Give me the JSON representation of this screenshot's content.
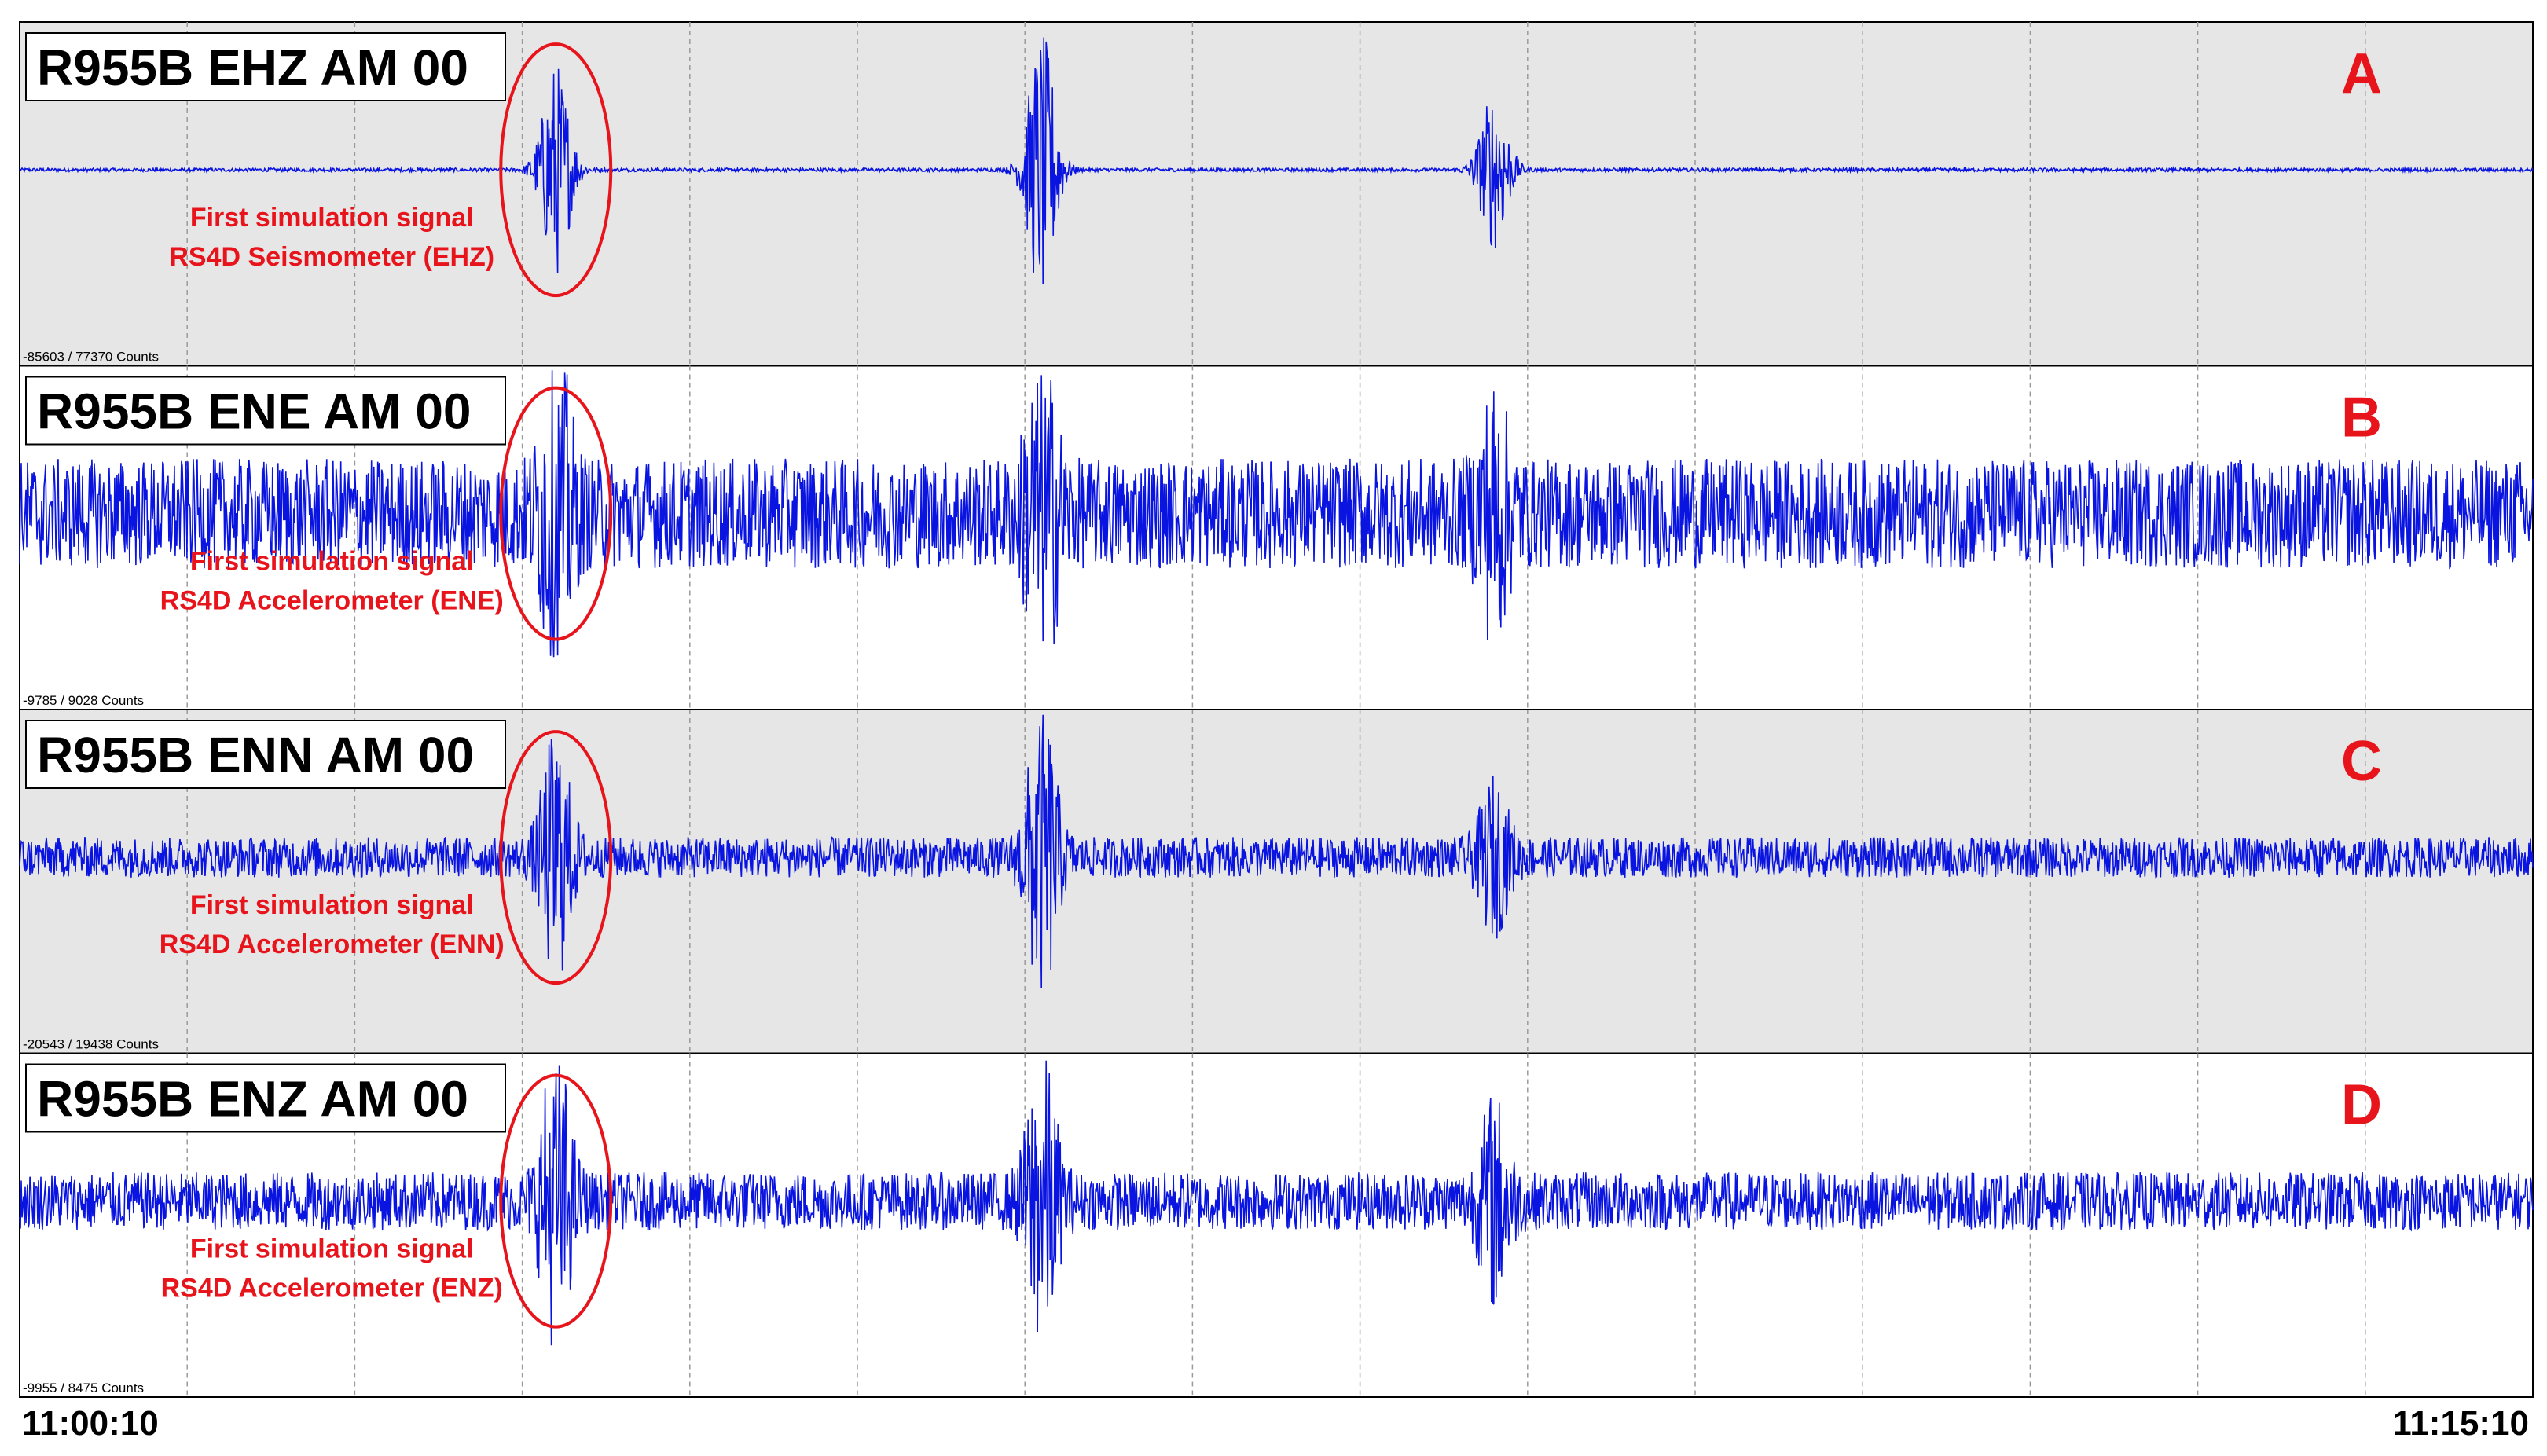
{
  "chart_data": {
    "type": "line",
    "title": "",
    "xlabel": "",
    "ylabel": "",
    "time_axis": {
      "start": "11:00:10",
      "end": "11:15:10"
    },
    "grid": true,
    "trace_color": "#0a14e0",
    "annotation_color": "#e8141b",
    "panels": [
      {
        "letter": "A",
        "station": "R955B EHZ AM 00",
        "range_text": "-85603 / 77370 Counts",
        "ylim": [
          -85603,
          77370
        ],
        "background": "#e6e6e6",
        "noise_level": 0.012,
        "envelope": [
          {
            "t_min": 3.2,
            "amplitude": 0.75
          },
          {
            "t_min": 6.1,
            "amplitude": 0.95
          },
          {
            "t_min": 8.8,
            "amplitude": 0.55
          }
        ],
        "annotation": {
          "line1": "First simulation signal",
          "line2": "RS4D Seismometer (EHZ)"
        }
      },
      {
        "letter": "B",
        "station": "R955B ENE AM 00",
        "range_text": "-9785 / 9028 Counts",
        "ylim": [
          -9785,
          9028
        ],
        "background": "#ffffff",
        "noise_level": 0.38,
        "envelope": [
          {
            "t_min": 3.2,
            "amplitude": 0.95
          },
          {
            "t_min": 6.1,
            "amplitude": 1.0
          },
          {
            "t_min": 8.8,
            "amplitude": 0.6
          }
        ],
        "annotation": {
          "line1": "First simulation signal",
          "line2": "RS4D Accelerometer (ENE)"
        }
      },
      {
        "letter": "C",
        "station": "R955B ENN AM 00",
        "range_text": "-20543 / 19438 Counts",
        "ylim": [
          -20543,
          19438
        ],
        "background": "#e6e6e6",
        "noise_level": 0.14,
        "envelope": [
          {
            "t_min": 3.2,
            "amplitude": 0.8
          },
          {
            "t_min": 6.1,
            "amplitude": 1.0
          },
          {
            "t_min": 8.8,
            "amplitude": 0.45
          }
        ],
        "annotation": {
          "line1": "First simulation signal",
          "line2": "RS4D Accelerometer (ENN)"
        }
      },
      {
        "letter": "D",
        "station": "R955B ENZ AM 00",
        "range_text": "-9955 / 8475 Counts",
        "ylim": [
          -9955,
          8475
        ],
        "background": "#ffffff",
        "noise_level": 0.2,
        "envelope": [
          {
            "t_min": 3.2,
            "amplitude": 0.95
          },
          {
            "t_min": 6.1,
            "amplitude": 0.95
          },
          {
            "t_min": 8.8,
            "amplitude": 0.6
          }
        ],
        "annotation": {
          "line1": "First simulation signal",
          "line2": "RS4D Accelerometer (ENZ)"
        }
      }
    ]
  }
}
